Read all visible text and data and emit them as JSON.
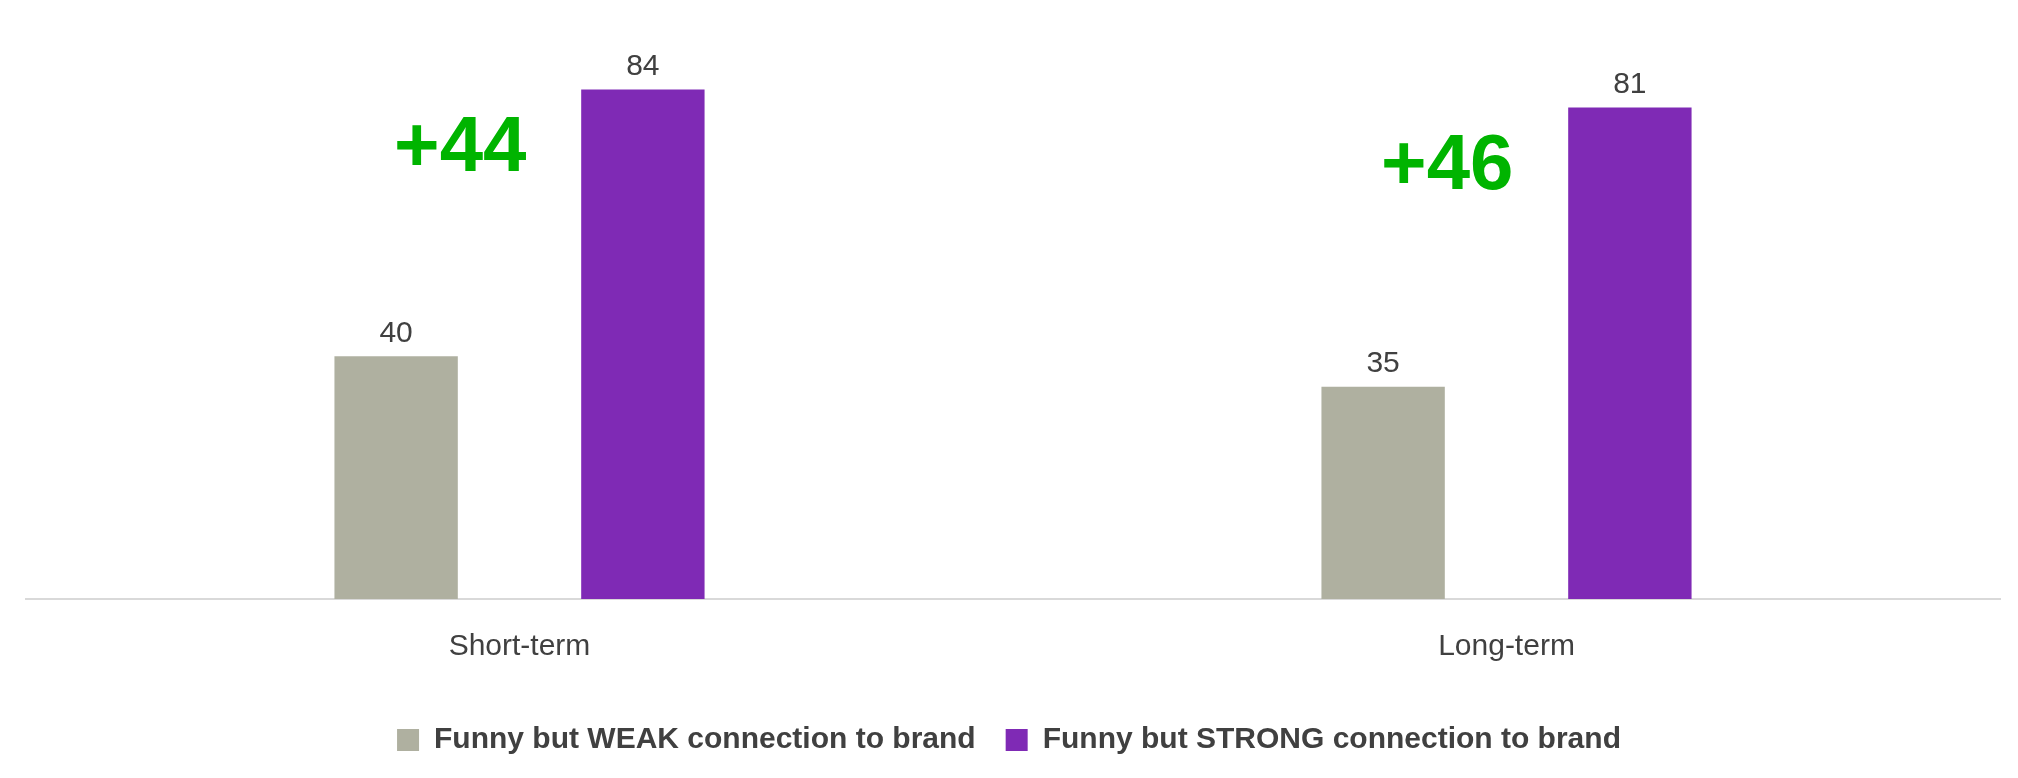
{
  "chart_data": {
    "type": "bar",
    "categories": [
      "Short-term",
      "Long-term"
    ],
    "series": [
      {
        "name": "Funny but WEAK connection to brand",
        "color": "#afb0a0",
        "values": [
          40,
          35
        ]
      },
      {
        "name": "Funny but STRONG connection to brand",
        "color": "#7f2ab5",
        "values": [
          84,
          81
        ]
      }
    ],
    "tick_labels": "x",
    "grid": false,
    "legend": "bottom",
    "data_labels": true,
    "annotations": [
      "+44",
      "+46"
    ]
  }
}
